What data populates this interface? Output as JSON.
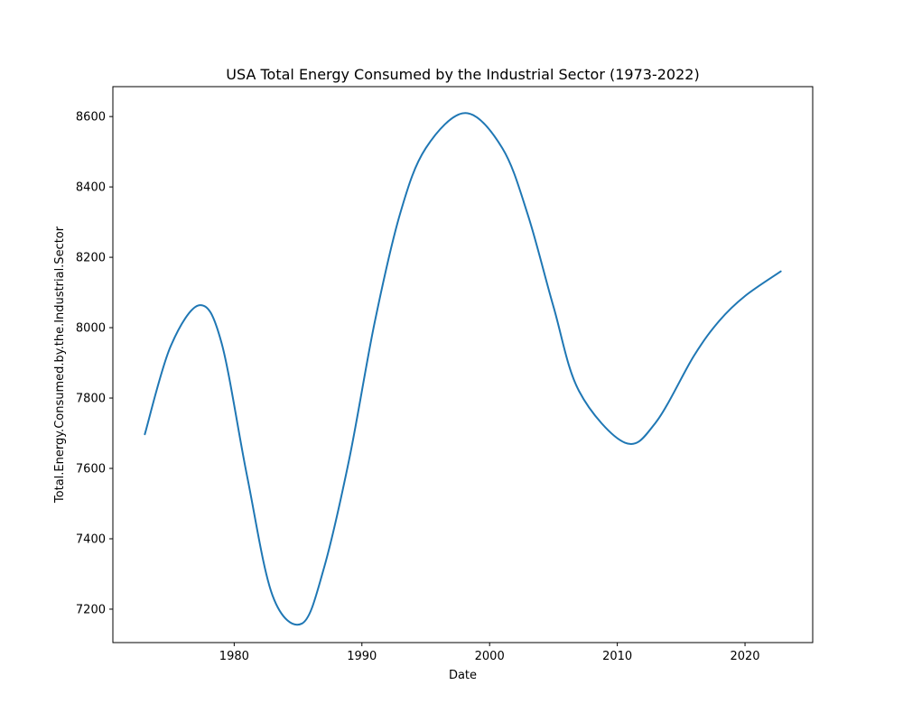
{
  "chart_data": {
    "type": "line",
    "title": "USA Total Energy Consumed by the Industrial Sector (1973-2022)",
    "xlabel": "Date",
    "ylabel": "Total.Energy.Consumed.by.the.Industrial.Sector",
    "xlim": [
      1970.5,
      2025.3
    ],
    "ylim": [
      7105,
      8685
    ],
    "x_ticks": [
      1980,
      1990,
      2000,
      2010,
      2020
    ],
    "y_ticks": [
      7200,
      7400,
      7600,
      7800,
      8000,
      8200,
      8400,
      8600
    ],
    "grid": false,
    "legend": "none",
    "series": [
      {
        "color": "#1f77b4",
        "x": [
          1973,
          1975,
          1977.3,
          1979,
          1981,
          1983,
          1985.3,
          1987,
          1989,
          1991,
          1993,
          1995,
          1998.1,
          2001,
          2003,
          2005,
          2007,
          2010.6,
          2013,
          2016,
          2018,
          2020,
          2022.8
        ],
        "y": [
          7697,
          7945,
          8064,
          7958,
          7580,
          7239,
          7159,
          7313,
          7625,
          8015,
          8325,
          8510,
          8610,
          8510,
          8320,
          8060,
          7820,
          7673,
          7730,
          7920,
          8020,
          8090,
          8160
        ]
      }
    ]
  }
}
